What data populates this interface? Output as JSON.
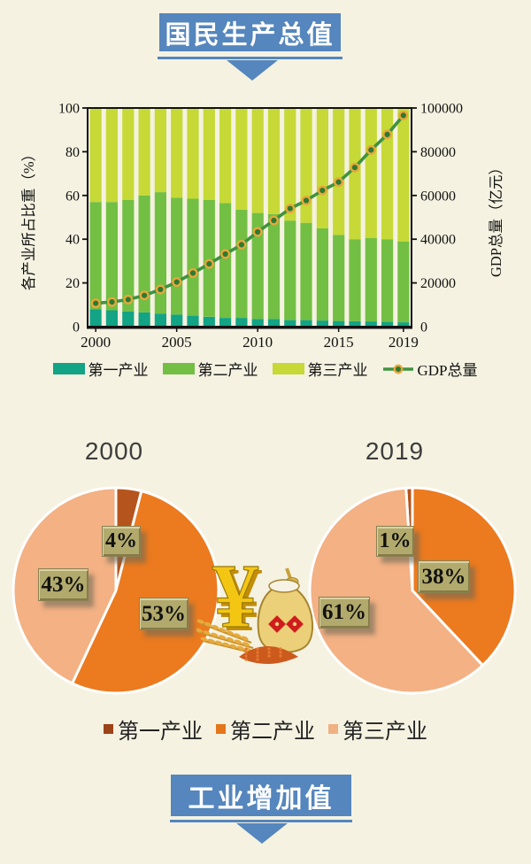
{
  "colors": {
    "background": "#f5f2e1",
    "banner_blue": "#5586bd",
    "primary_teal": "#13a385",
    "secondary_green": "#72bf44",
    "tertiary_yellowgreen": "#c6d936",
    "gdp_line_green": "#3f9340",
    "gdp_dot_center_green": "#2d7a30",
    "gdp_dot_ring_orange": "#e9a63c",
    "pie_primary_brown": "#b5541c",
    "pie_secondary_orange": "#ec7a1f",
    "pie_tertiary_peach": "#f3b184",
    "label_box_olive": "#b2aa6c",
    "axis_black": "#111111"
  },
  "top_banner": {
    "label": "国民生产总值"
  },
  "bottom_banner": {
    "label": "工业增加值"
  },
  "chart_data": [
    {
      "type": "bar",
      "subtype": "stacked-percent-bars-with-line",
      "x": [
        2000,
        2001,
        2002,
        2003,
        2004,
        2005,
        2006,
        2007,
        2008,
        2009,
        2010,
        2011,
        2012,
        2013,
        2014,
        2015,
        2016,
        2017,
        2018,
        2019
      ],
      "xticks": [
        2000,
        2005,
        2010,
        2015,
        2019
      ],
      "ylabel_left": "各产业所占比重（%）",
      "ylabel_right": "GDP总量（亿元）",
      "ylim_left": [
        0,
        100
      ],
      "ylim_right": [
        0,
        100000
      ],
      "yticks_left": [
        0,
        20,
        40,
        60,
        80,
        100
      ],
      "yticks_right": [
        0,
        20000,
        40000,
        60000,
        80000,
        100000
      ],
      "grid": false,
      "legend_position": "bottom",
      "series": [
        {
          "name": "第一产业",
          "type": "bar",
          "color": "#13a385",
          "values": [
            8,
            7.5,
            7,
            6.5,
            6,
            5.5,
            5,
            4.5,
            4,
            4,
            3.5,
            3.5,
            3,
            3,
            2.8,
            2.6,
            2.5,
            2.4,
            2.2,
            2
          ]
        },
        {
          "name": "第二产业",
          "type": "bar",
          "color": "#72bf44",
          "values": [
            49,
            49.5,
            51,
            53.5,
            55.5,
            53.5,
            53.5,
            53.5,
            52.5,
            49.5,
            48.5,
            48,
            45.5,
            44.5,
            42.2,
            39.4,
            37.5,
            38.1,
            37.8,
            37
          ]
        },
        {
          "name": "第三产业",
          "type": "bar",
          "color": "#c6d936",
          "values": [
            43,
            43,
            42,
            40,
            38.5,
            41,
            41.5,
            42,
            43.5,
            46.5,
            48,
            48.5,
            51.5,
            52.5,
            55,
            58,
            60,
            59.5,
            60,
            61
          ]
        },
        {
          "name": "GDP总量",
          "type": "line",
          "axis": "right",
          "color": "#3f9340",
          "marker_fill": "#2d7a30",
          "marker_ring": "#e9a63c",
          "values": [
            10700,
            11300,
            12400,
            14300,
            17000,
            20400,
            24500,
            28700,
            33200,
            37500,
            43300,
            48600,
            54000,
            57700,
            62300,
            66100,
            72800,
            80800,
            87900,
            96600
          ]
        }
      ]
    },
    {
      "type": "pie",
      "title": "2000",
      "labels": [
        "第一产业",
        "第二产业",
        "第三产业"
      ],
      "values": [
        4,
        53,
        43
      ],
      "pct_labels": [
        "4%",
        "53%",
        "43%"
      ],
      "colors": [
        "#b5541c",
        "#ec7a1f",
        "#f3b184"
      ]
    },
    {
      "type": "pie",
      "title": "2019",
      "labels": [
        "第一产业",
        "第二产业",
        "第三产业"
      ],
      "values": [
        1,
        38,
        61
      ],
      "pct_labels": [
        "1%",
        "38%",
        "61%"
      ],
      "colors": [
        "#b5541c",
        "#ec7a1f",
        "#f3b184"
      ]
    }
  ],
  "pie_legend": [
    {
      "label": "第一产业",
      "color": "#9c4317"
    },
    {
      "label": "第二产业",
      "color": "#e4761c"
    },
    {
      "label": "第三产业",
      "color": "#f0b183"
    }
  ]
}
